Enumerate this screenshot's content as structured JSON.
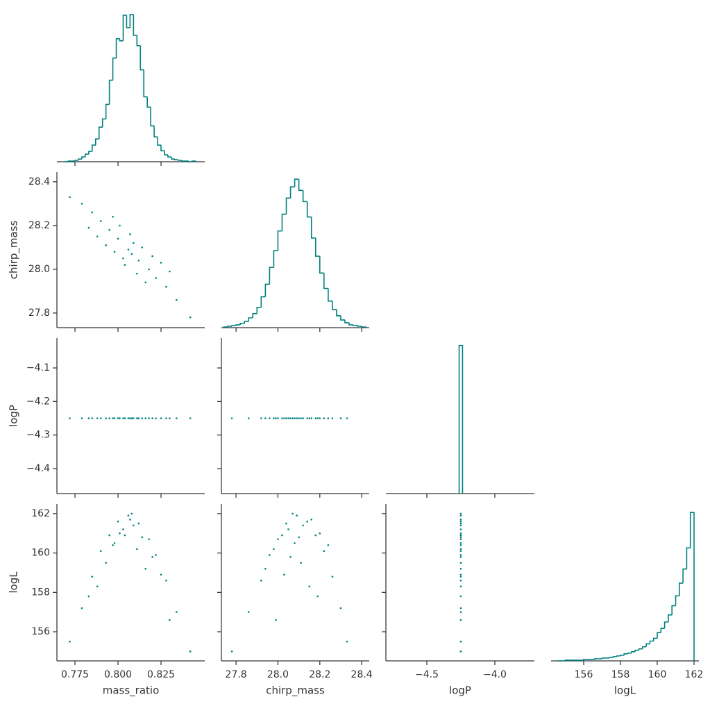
{
  "chart_data": [
    {
      "type": "histogram",
      "color": "#008080",
      "bins": [
        0.769,
        0.771,
        0.773,
        0.775,
        0.777,
        0.779,
        0.781,
        0.783,
        0.785,
        0.787,
        0.789,
        0.791,
        0.793,
        0.795,
        0.797,
        0.799,
        0.801,
        0.803,
        0.805,
        0.807,
        0.809,
        0.811,
        0.813,
        0.815,
        0.817,
        0.819,
        0.821,
        0.823,
        0.825,
        0.827,
        0.829,
        0.831,
        0.833,
        0.835,
        0.837,
        0.839,
        0.841,
        0.843,
        0.845
      ],
      "values": [
        0,
        1,
        1,
        2,
        4,
        7,
        11,
        15,
        24,
        33,
        50,
        62,
        83,
        118,
        150,
        178,
        175,
        212,
        194,
        213,
        183,
        168,
        133,
        94,
        79,
        52,
        36,
        24,
        16,
        10,
        7,
        4,
        3,
        2,
        1,
        1,
        0,
        1
      ],
      "xlim": [
        0.7645,
        0.8504
      ],
      "xticks": [
        0.775,
        0.8,
        0.825
      ],
      "ylim": [
        0,
        224
      ]
    },
    {
      "type": "scatter",
      "color": "#008080",
      "ylabel": "chirp_mass",
      "x": [
        0.806,
        0.8,
        0.812,
        0.795,
        0.818,
        0.79,
        0.822,
        0.785,
        0.828,
        0.779,
        0.834,
        0.772,
        0.842,
        0.803,
        0.809,
        0.798,
        0.814,
        0.801,
        0.811,
        0.793,
        0.82,
        0.807,
        0.804,
        0.788,
        0.825,
        0.797,
        0.816,
        0.783,
        0.83,
        0.808
      ],
      "y": [
        28.09,
        28.14,
        28.04,
        28.18,
        28,
        28.22,
        27.96,
        28.26,
        27.92,
        28.3,
        27.86,
        28.33,
        27.78,
        28.05,
        28.12,
        28.08,
        28.1,
        28.2,
        27.98,
        28.11,
        28.06,
        28.16,
        28.02,
        28.15,
        28.03,
        28.24,
        27.94,
        28.19,
        27.99,
        28.07
      ],
      "xlim": [
        0.7645,
        0.8504
      ],
      "xticks": [
        0.775,
        0.8,
        0.825
      ],
      "ylim": [
        27.733,
        28.444
      ],
      "yticks": [
        27.8,
        {
          "value": 28,
          "label": "28.0"
        },
        28.2,
        28.4
      ]
    },
    {
      "type": "histogram",
      "color": "#008080",
      "bins": [
        27.74,
        27.76,
        27.78,
        27.8,
        27.82,
        27.84,
        27.86,
        27.88,
        27.9,
        27.92,
        27.94,
        27.96,
        27.98,
        28,
        28.02,
        28.04,
        28.06,
        28.08,
        28.1,
        28.12,
        28.14,
        28.16,
        28.18,
        28.2,
        28.22,
        28.24,
        28.26,
        28.28,
        28.3,
        28.32,
        28.34,
        28.36,
        28.38,
        28.4,
        28.42
      ],
      "values": [
        1,
        2,
        3,
        4,
        6,
        9,
        14,
        20,
        29,
        44,
        62,
        86,
        110,
        138,
        162,
        185,
        201,
        212,
        196,
        180,
        158,
        128,
        102,
        78,
        56,
        38,
        26,
        17,
        11,
        7,
        4,
        3,
        2,
        1
      ],
      "xlim": [
        27.73,
        28.436
      ],
      "xticks": [
        27.8,
        28,
        28.2,
        28.4
      ],
      "ylim": [
        0,
        222
      ]
    },
    {
      "type": "scatter",
      "color": "#008080",
      "ylabel": "logP",
      "x": [
        0.806,
        0.8,
        0.812,
        0.795,
        0.818,
        0.79,
        0.822,
        0.785,
        0.828,
        0.779,
        0.834,
        0.772,
        0.842,
        0.803,
        0.809,
        0.798,
        0.814,
        0.801,
        0.811,
        0.793,
        0.82,
        0.807,
        0.804,
        0.788,
        0.825,
        0.797,
        0.816,
        0.783,
        0.83,
        0.808
      ],
      "y": [
        -4.25,
        -4.25,
        -4.25,
        -4.25,
        -4.25,
        -4.25,
        -4.25,
        -4.25,
        -4.25,
        -4.25,
        -4.25,
        -4.25,
        -4.25,
        -4.25,
        -4.25,
        -4.25,
        -4.25,
        -4.25,
        -4.25,
        -4.25,
        -4.25,
        -4.25,
        -4.25,
        -4.25,
        -4.25,
        -4.25,
        -4.25,
        -4.25,
        -4.25,
        -4.25
      ],
      "xlim": [
        0.7645,
        0.8504
      ],
      "xticks": [
        0.775,
        0.8,
        0.825
      ],
      "ylim": [
        -4.4745,
        -4.011
      ],
      "yticks": [
        {
          "value": -4.1,
          "label": "−4.1"
        },
        {
          "value": -4.2,
          "label": "−4.2"
        },
        {
          "value": -4.3,
          "label": "−4.3"
        },
        {
          "value": -4.4,
          "label": "−4.4"
        }
      ]
    },
    {
      "type": "scatter",
      "color": "#008080",
      "x": [
        28.09,
        28.14,
        28.04,
        28.18,
        28,
        28.22,
        27.96,
        28.26,
        27.92,
        28.3,
        27.86,
        28.33,
        27.78,
        28.05,
        28.12,
        28.08,
        28.1,
        28.2,
        27.98,
        28.11,
        28.06,
        28.16,
        28.02,
        28.15,
        28.03,
        28.24,
        27.94,
        28.19,
        27.99,
        28.07
      ],
      "y": [
        -4.25,
        -4.25,
        -4.25,
        -4.25,
        -4.25,
        -4.25,
        -4.25,
        -4.25,
        -4.25,
        -4.25,
        -4.25,
        -4.25,
        -4.25,
        -4.25,
        -4.25,
        -4.25,
        -4.25,
        -4.25,
        -4.25,
        -4.25,
        -4.25,
        -4.25,
        -4.25,
        -4.25,
        -4.25,
        -4.25,
        -4.25,
        -4.25,
        -4.25,
        -4.25
      ],
      "xlim": [
        27.73,
        28.436
      ],
      "xticks": [
        27.8,
        28,
        28.2,
        28.4
      ],
      "ylim": [
        -4.4745,
        -4.011
      ],
      "yticks": [
        -4.1,
        -4.2,
        -4.3,
        -4.4
      ]
    },
    {
      "type": "histogram",
      "color": "#008080",
      "bins": [
        -4.2625,
        -4.2375
      ],
      "values": [
        1
      ],
      "xlim": [
        -4.801,
        -3.709
      ],
      "xticks": [
        -4.5,
        -4
      ],
      "ylim": [
        0,
        1.05
      ]
    },
    {
      "type": "scatter",
      "color": "#008080",
      "xlabel": "mass_ratio",
      "ylabel": "logL",
      "x": [
        0.806,
        0.8,
        0.812,
        0.795,
        0.818,
        0.79,
        0.822,
        0.785,
        0.828,
        0.779,
        0.834,
        0.772,
        0.842,
        0.803,
        0.809,
        0.798,
        0.814,
        0.801,
        0.811,
        0.793,
        0.82,
        0.807,
        0.804,
        0.788,
        0.825,
        0.797,
        0.816,
        0.783,
        0.83,
        0.808
      ],
      "y": [
        161.9,
        161.6,
        161.5,
        160.9,
        160.7,
        160.1,
        159.9,
        158.8,
        158.6,
        157.2,
        157,
        155.5,
        155,
        161.2,
        161.4,
        160.5,
        160.8,
        161,
        160.2,
        159.5,
        159.8,
        161.7,
        160.9,
        158.3,
        158.9,
        160.4,
        159.2,
        157.8,
        156.6,
        162
      ],
      "xlim": [
        0.7645,
        0.8504
      ],
      "xticks": [
        0.775,
        {
          "value": 0.8,
          "label": "0.800"
        },
        0.825
      ],
      "ylim": [
        154.52,
        162.49
      ],
      "yticks": [
        156,
        158,
        160,
        162
      ]
    },
    {
      "type": "scatter",
      "color": "#008080",
      "xlabel": "chirp_mass",
      "x": [
        28.09,
        28.14,
        28.04,
        28.18,
        28,
        28.22,
        27.96,
        28.26,
        27.92,
        28.3,
        27.86,
        28.33,
        27.78,
        28.05,
        28.12,
        28.08,
        28.1,
        28.2,
        27.98,
        28.11,
        28.06,
        28.16,
        28.02,
        28.15,
        28.03,
        28.24,
        27.94,
        28.19,
        27.99,
        28.07
      ],
      "y": [
        161.9,
        161.6,
        161.5,
        160.9,
        160.7,
        160.1,
        159.9,
        158.8,
        158.6,
        157.2,
        157,
        155.5,
        155,
        161.2,
        161.4,
        160.5,
        160.8,
        161,
        160.2,
        159.5,
        159.8,
        161.7,
        160.9,
        158.3,
        158.9,
        160.4,
        159.2,
        157.8,
        156.6,
        162
      ],
      "xlim": [
        27.73,
        28.436
      ],
      "xticks": [
        27.8,
        {
          "value": 28,
          "label": "28.0"
        },
        28.2,
        28.4
      ],
      "ylim": [
        154.52,
        162.49
      ],
      "yticks": [
        156,
        158,
        160,
        162
      ]
    },
    {
      "type": "scatter",
      "color": "#008080",
      "xlabel": "logP",
      "x": [
        -4.25,
        -4.25,
        -4.25,
        -4.25,
        -4.25,
        -4.25,
        -4.25,
        -4.25,
        -4.25,
        -4.25,
        -4.25,
        -4.25,
        -4.25,
        -4.25,
        -4.25,
        -4.25,
        -4.25,
        -4.25,
        -4.25,
        -4.25,
        -4.25,
        -4.25,
        -4.25,
        -4.25,
        -4.25,
        -4.25,
        -4.25,
        -4.25,
        -4.25,
        -4.25
      ],
      "y": [
        161.9,
        161.6,
        161.5,
        160.9,
        160.7,
        160.1,
        159.9,
        158.8,
        158.6,
        157.2,
        157,
        155.5,
        155,
        161.2,
        161.4,
        160.5,
        160.8,
        161,
        160.2,
        159.5,
        159.8,
        161.7,
        160.9,
        158.3,
        158.9,
        160.4,
        159.2,
        157.8,
        156.6,
        162
      ],
      "xlim": [
        -4.801,
        -3.709
      ],
      "xticks": [
        {
          "value": -4.5,
          "label": "−4.5"
        },
        {
          "value": -4,
          "label": "−4.0"
        }
      ],
      "ylim": [
        154.52,
        162.49
      ],
      "yticks": [
        156,
        158,
        160,
        162
      ]
    },
    {
      "type": "histogram",
      "color": "#008080",
      "xlabel": "logL",
      "bins": [
        154.6,
        154.8,
        155,
        155.2,
        155.4,
        155.6,
        155.8,
        156,
        156.2,
        156.4,
        156.6,
        156.8,
        157,
        157.2,
        157.4,
        157.6,
        157.8,
        158,
        158.2,
        158.4,
        158.6,
        158.8,
        159,
        159.2,
        159.4,
        159.6,
        159.8,
        160,
        160.2,
        160.4,
        160.6,
        160.8,
        161,
        161.2,
        161.4,
        161.6,
        161.8,
        162
      ],
      "values": [
        0,
        0,
        1,
        1,
        1,
        1,
        1,
        2,
        2,
        2,
        3,
        3,
        4,
        4,
        5,
        6,
        7,
        8,
        10,
        11,
        13,
        15,
        17,
        20,
        24,
        28,
        32,
        40,
        46,
        55,
        65,
        78,
        92,
        110,
        130,
        160,
        210
      ],
      "xlim": [
        154.226,
        162.264
      ],
      "xticks": [
        156,
        158,
        160,
        162
      ],
      "ylim": [
        0,
        222
      ]
    }
  ]
}
